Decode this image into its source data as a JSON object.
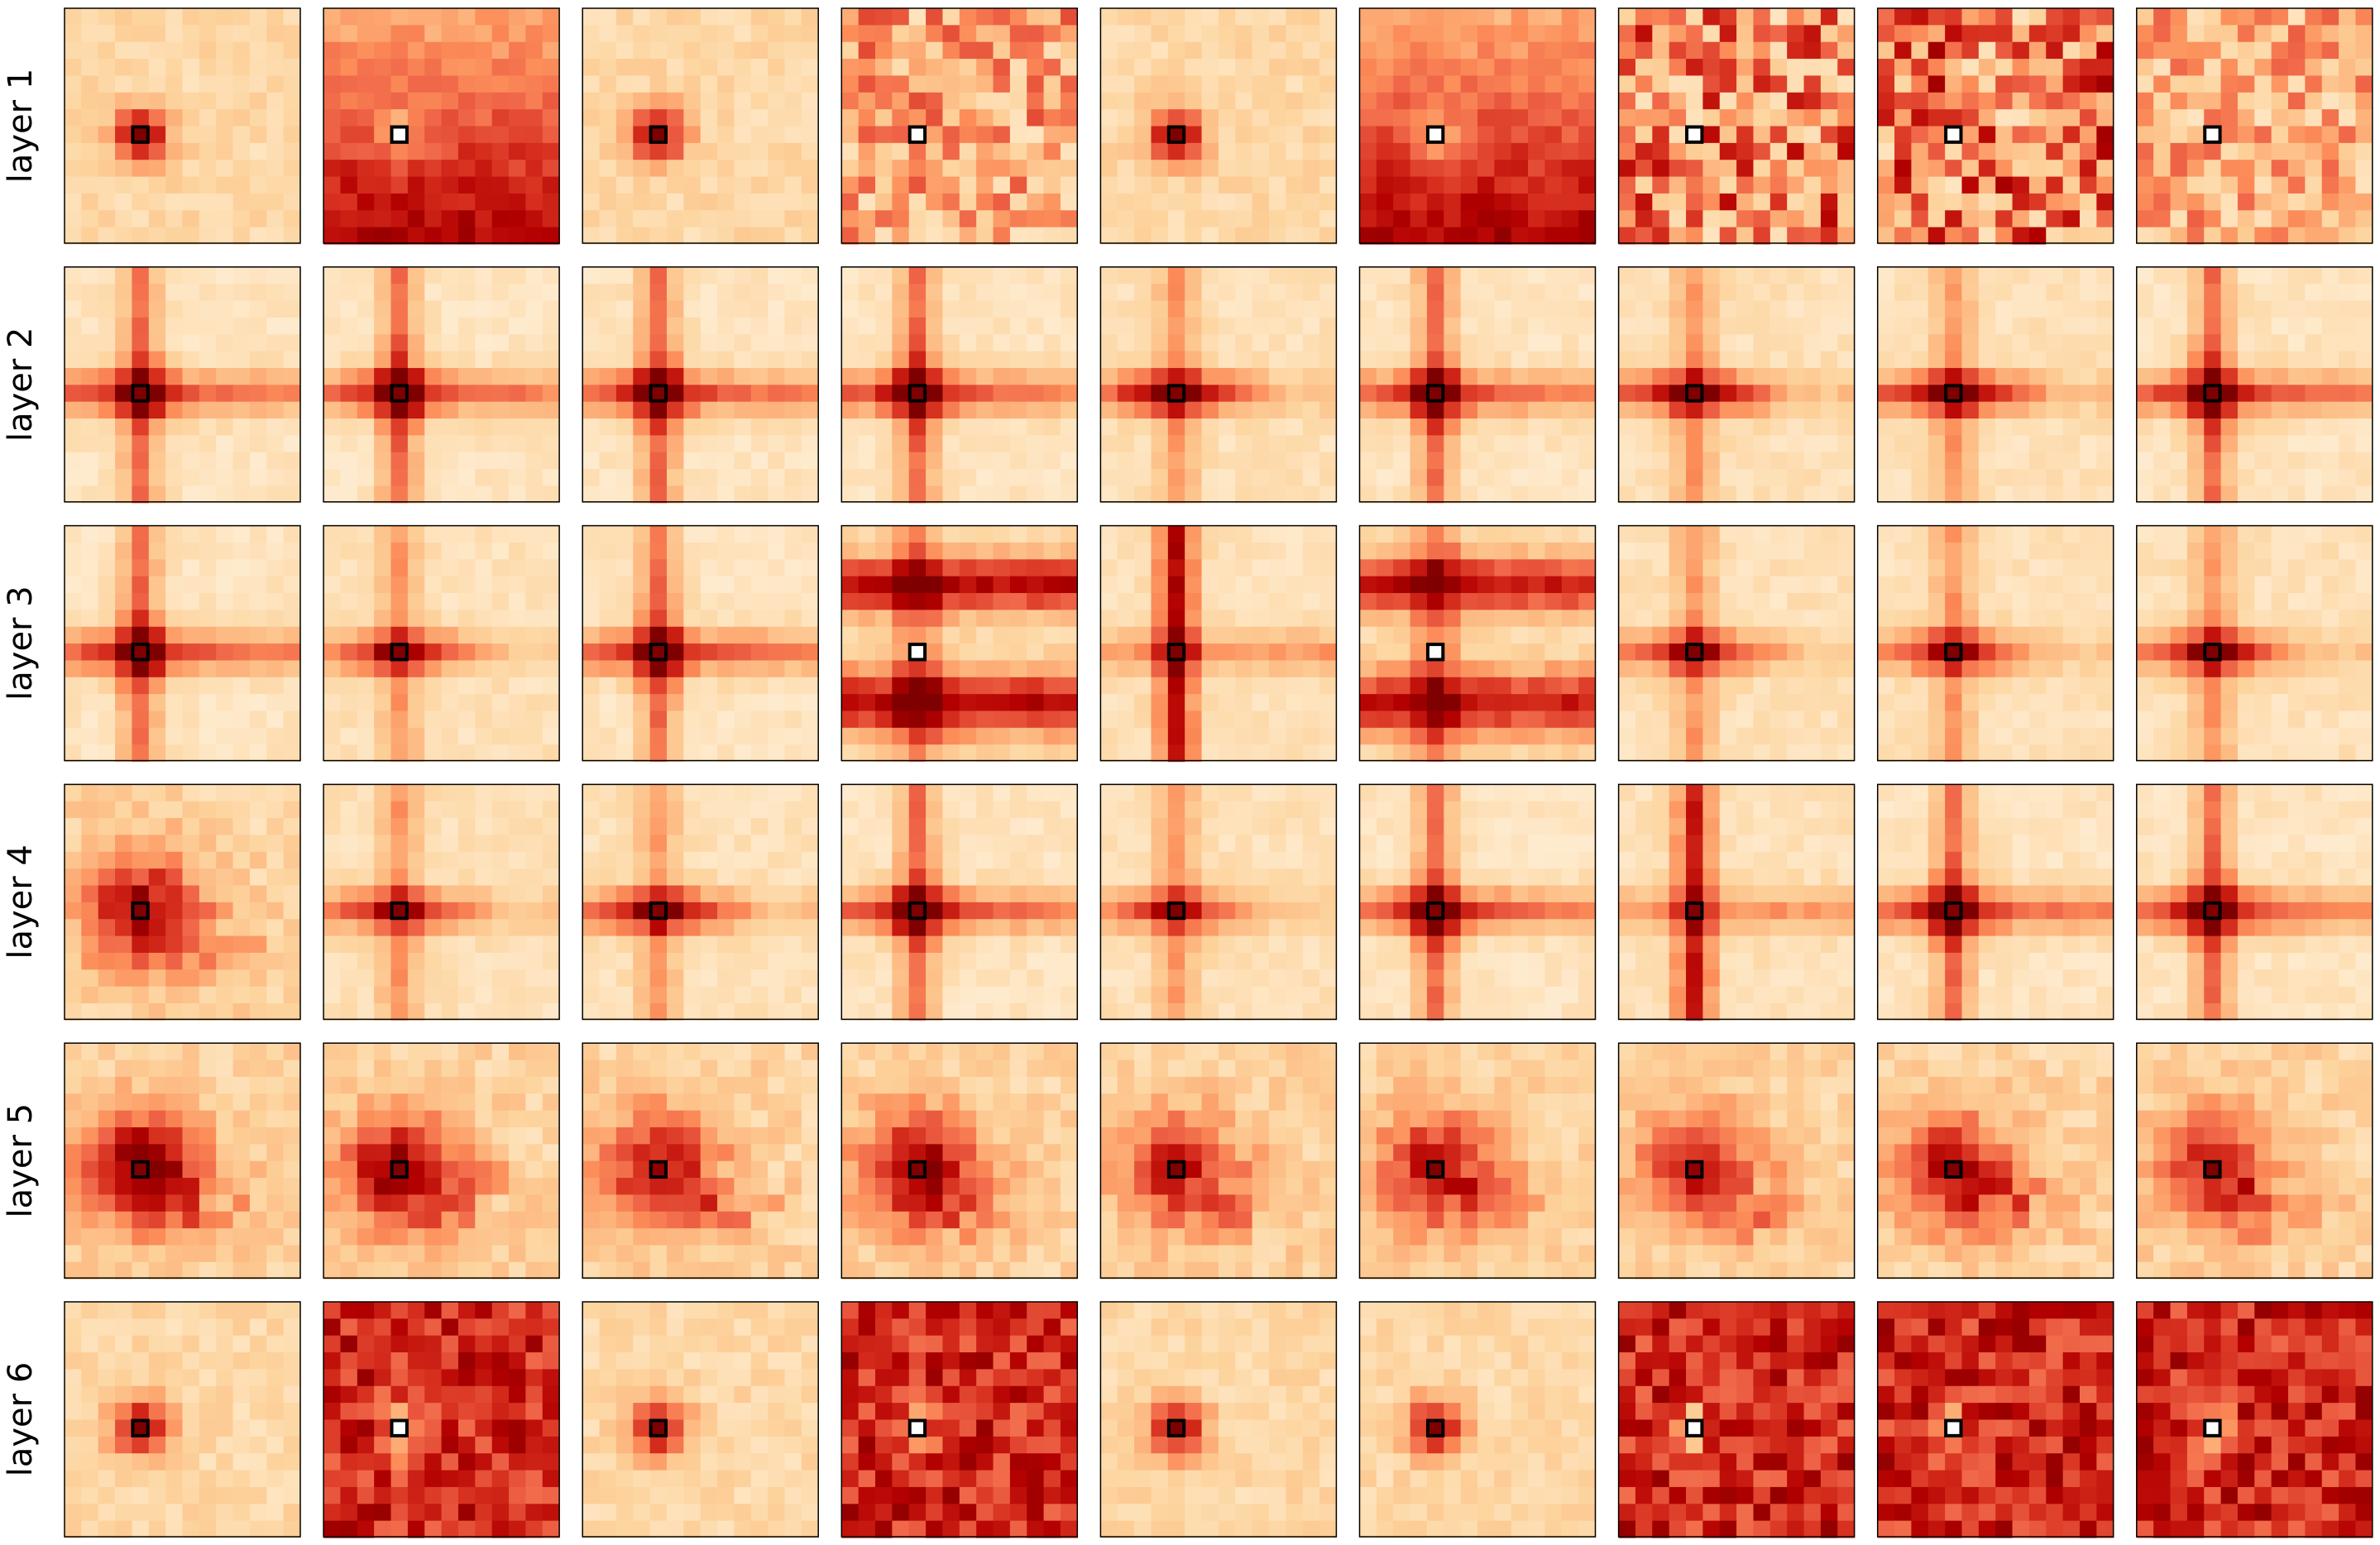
{
  "chart_data": {
    "type": "heatmap",
    "title": "",
    "grid_rows": 6,
    "grid_cols": 9,
    "map_size": [
      14,
      14
    ],
    "colormap": "OrRd",
    "axis_ticks": "none",
    "query_marker": "black-outlined square",
    "row_labels": [
      "layer 1",
      "layer 2",
      "layer 3",
      "layer 4",
      "layer 5",
      "layer 6"
    ],
    "patterns": [
      [
        {
          "query": [
            7,
            4
          ],
          "style": "peak",
          "level": 0.3
        },
        {
          "query": [
            7,
            4
          ],
          "style": "bottom-dark",
          "level": 0.75
        },
        {
          "query": [
            7,
            4
          ],
          "style": "peak",
          "level": 0.35
        },
        {
          "query": [
            7,
            4
          ],
          "style": "noisy",
          "level": 0.5
        },
        {
          "query": [
            7,
            4
          ],
          "style": "peak",
          "level": 0.25
        },
        {
          "query": [
            7,
            4
          ],
          "style": "bottom-dark",
          "level": 0.7
        },
        {
          "query": [
            7,
            4
          ],
          "style": "noisy",
          "level": 0.65
        },
        {
          "query": [
            7,
            4
          ],
          "style": "noisy",
          "level": 0.7
        },
        {
          "query": [
            7,
            4
          ],
          "style": "noisy",
          "level": 0.45
        }
      ],
      [
        {
          "query": [
            7,
            4
          ],
          "style": "cross",
          "level": 0.6
        },
        {
          "query": [
            7,
            4
          ],
          "style": "cross",
          "level": 0.45
        },
        {
          "query": [
            7,
            4
          ],
          "style": "cross",
          "level": 0.5
        },
        {
          "query": [
            7,
            4
          ],
          "style": "cross",
          "level": 0.55
        },
        {
          "query": [
            7,
            4
          ],
          "style": "row-band",
          "level": 0.75
        },
        {
          "query": [
            7,
            4
          ],
          "style": "cross",
          "level": 0.5
        },
        {
          "query": [
            7,
            4
          ],
          "style": "row-band",
          "level": 0.75
        },
        {
          "query": [
            7,
            4
          ],
          "style": "row-band",
          "level": 0.75
        },
        {
          "query": [
            7,
            4
          ],
          "style": "cross",
          "level": 0.45
        }
      ],
      [
        {
          "query": [
            7,
            4
          ],
          "style": "cross",
          "level": 0.55
        },
        {
          "query": [
            7,
            4
          ],
          "style": "row-band",
          "level": 0.6
        },
        {
          "query": [
            7,
            4
          ],
          "style": "cross",
          "level": 0.55
        },
        {
          "query": [
            7,
            4
          ],
          "style": "double-band",
          "level": 0.75
        },
        {
          "query": [
            7,
            4
          ],
          "style": "col-band",
          "level": 0.7
        },
        {
          "query": [
            7,
            4
          ],
          "style": "double-band",
          "level": 0.7
        },
        {
          "query": [
            7,
            4
          ],
          "style": "row-band",
          "level": 0.6
        },
        {
          "query": [
            7,
            4
          ],
          "style": "row-band",
          "level": 0.6
        },
        {
          "query": [
            7,
            4
          ],
          "style": "row-band",
          "level": 0.65
        }
      ],
      [
        {
          "query": [
            7,
            4
          ],
          "style": "blob",
          "level": 0.65
        },
        {
          "query": [
            7,
            4
          ],
          "style": "row-band",
          "level": 0.6
        },
        {
          "query": [
            7,
            4
          ],
          "style": "row-band",
          "level": 0.7
        },
        {
          "query": [
            7,
            4
          ],
          "style": "cross",
          "level": 0.6
        },
        {
          "query": [
            7,
            4
          ],
          "style": "row-band",
          "level": 0.55
        },
        {
          "query": [
            7,
            4
          ],
          "style": "cross",
          "level": 0.55
        },
        {
          "query": [
            7,
            4
          ],
          "style": "col-band",
          "level": 0.65
        },
        {
          "query": [
            7,
            4
          ],
          "style": "cross",
          "level": 0.6
        },
        {
          "query": [
            7,
            4
          ],
          "style": "cross",
          "level": 0.6
        }
      ],
      [
        {
          "query": [
            7,
            4
          ],
          "style": "blob",
          "level": 0.75
        },
        {
          "query": [
            7,
            4
          ],
          "style": "blob",
          "level": 0.7
        },
        {
          "query": [
            7,
            4
          ],
          "style": "blob",
          "level": 0.6
        },
        {
          "query": [
            7,
            4
          ],
          "style": "blob",
          "level": 0.7
        },
        {
          "query": [
            7,
            4
          ],
          "style": "blob",
          "level": 0.55
        },
        {
          "query": [
            7,
            4
          ],
          "style": "blob",
          "level": 0.6
        },
        {
          "query": [
            7,
            4
          ],
          "style": "blob",
          "level": 0.55
        },
        {
          "query": [
            7,
            4
          ],
          "style": "blob",
          "level": 0.6
        },
        {
          "query": [
            7,
            4
          ],
          "style": "blob",
          "level": 0.55
        }
      ],
      [
        {
          "query": [
            7,
            4
          ],
          "style": "peak",
          "level": 0.25
        },
        {
          "query": [
            7,
            4
          ],
          "style": "dark-uniform",
          "level": 0.85
        },
        {
          "query": [
            7,
            4
          ],
          "style": "peak",
          "level": 0.25
        },
        {
          "query": [
            7,
            4
          ],
          "style": "dark-uniform",
          "level": 0.85
        },
        {
          "query": [
            7,
            4
          ],
          "style": "peak",
          "level": 0.25
        },
        {
          "query": [
            7,
            4
          ],
          "style": "peak",
          "level": 0.35
        },
        {
          "query": [
            7,
            4
          ],
          "style": "dark-uniform",
          "level": 0.85
        },
        {
          "query": [
            7,
            4
          ],
          "style": "dark-uniform",
          "level": 0.9
        },
        {
          "query": [
            7,
            4
          ],
          "style": "dark-uniform",
          "level": 0.9
        }
      ]
    ]
  }
}
